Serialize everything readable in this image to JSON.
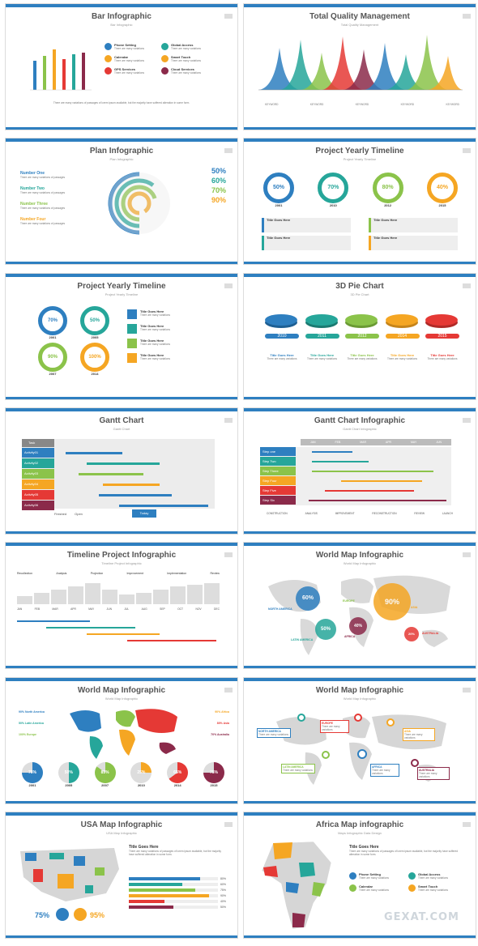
{
  "slides": [
    {
      "title": "Bar Infographic",
      "subtitle": "Bar Infographic"
    },
    {
      "title": "Total Quality Management",
      "subtitle": "Total Quality Management"
    },
    {
      "title": "Plan Infographic",
      "subtitle": "Plan Infographic"
    },
    {
      "title": "Project Yearly Timeline",
      "subtitle": "Project Yearly Timeline"
    },
    {
      "title": "Project Yearly Timeline",
      "subtitle": "Project Yearly Timeline"
    },
    {
      "title": "3D Pie Chart",
      "subtitle": "3D Pie Chart"
    },
    {
      "title": "Gantt Chart",
      "subtitle": "Gantt Chart"
    },
    {
      "title": "Gantt Chart Infographic",
      "subtitle": "Gantt Chart Infographic"
    },
    {
      "title": "Timeline Project Infographic",
      "subtitle": "Timeline Project Infographic"
    },
    {
      "title": "World Map Infographic",
      "subtitle": "World Map Infographic"
    },
    {
      "title": "World Map Infographic",
      "subtitle": "World Map Infographic"
    },
    {
      "title": "World Map Infographic",
      "subtitle": "World Map Infographic"
    },
    {
      "title": "USA Map Infographic",
      "subtitle": "USA Map Infographic"
    },
    {
      "title": "Africa Map infographic",
      "subtitle": "Maps Infographic Data Design"
    }
  ],
  "bar": {
    "items": [
      "Phone Setting",
      "Calendar",
      "GPS Services",
      "Global Access",
      "Smart Touch",
      "Cloud Services"
    ]
  },
  "tqm": {
    "keyword": "KEYWORD"
  },
  "plan": {
    "items": [
      "Number One",
      "Number Two",
      "Number Three",
      "Number Four"
    ],
    "pcts": [
      "50%",
      "60%",
      "70%",
      "90%"
    ]
  },
  "pyt1": {
    "pcts": [
      "50%",
      "70%",
      "80%",
      "40%"
    ],
    "years": [
      "2001",
      "2010",
      "2012",
      "2015"
    ],
    "box": "Title Goes Here"
  },
  "pyt2": {
    "pcts": [
      "70%",
      "50%",
      "90%",
      "100%"
    ],
    "years": [
      "2001",
      "2005",
      "2007",
      "2014"
    ],
    "box": "Title Goes Here"
  },
  "pie3d": {
    "years": [
      "2010",
      "2011",
      "2012",
      "2014",
      "2015"
    ],
    "pcts": [
      "70%",
      "40%",
      "60%",
      "30%",
      "80%"
    ],
    "box": "Title Goes Here"
  },
  "gantt1": {
    "task": "Task",
    "rows": [
      "Activity01",
      "Activity02",
      "Activity03",
      "Activity04",
      "Activity05",
      "Activity06"
    ],
    "legend": [
      "Finished",
      "Open"
    ],
    "today": "Today"
  },
  "gantt2": {
    "months": [
      "JAN",
      "FEB",
      "MAR",
      "APR",
      "MAY",
      "JUN"
    ],
    "rows": [
      "Step one",
      "Step Two",
      "Step Three",
      "Step Four",
      "Step Five",
      "Step Six"
    ],
    "legend": [
      "CONSTRUCTION",
      "ANALYSIS",
      "IMPROVEMENT",
      "RECONSTRUCTION",
      "REVIEW",
      "LAUNCH"
    ]
  },
  "tpi": {
    "labels": [
      "Recollection",
      "Analysis",
      "Projection",
      "Improvement",
      "Implementation",
      "Review"
    ],
    "months": [
      "JAN",
      "FEB",
      "MAR",
      "APR",
      "MAY",
      "JUN",
      "JUL",
      "AUG",
      "SEP",
      "OCT",
      "NOV",
      "DEC"
    ]
  },
  "wm1": {
    "bubbles": [
      "60%",
      "90%",
      "50%",
      "40%",
      "20%"
    ],
    "regions": [
      "NORTH AMERICA",
      "EUROPE",
      "ASIA",
      "LATIN AMERICA",
      "AFRICA",
      "AUSTRALIA"
    ]
  },
  "wm2": {
    "pcts": [
      "75%",
      "50%",
      "85%",
      "25%",
      "65%",
      "75%"
    ],
    "years": [
      "2001",
      "2005",
      "2007",
      "2010",
      "2014",
      "2015"
    ],
    "left": [
      "90% North America",
      "50% Latin America",
      "100% Europe"
    ],
    "right": [
      "90% Africa",
      "80% Asia",
      "70% Australia"
    ]
  },
  "wm3": {
    "regions": [
      "NORTH AMERICA",
      "EUROPE",
      "ASIA",
      "LATIN AMERICA",
      "AFRICA",
      "AUSTRALIA"
    ]
  },
  "usa": {
    "title": "Title Goes Here",
    "pcts": [
      "75%",
      "95%"
    ],
    "bars": [
      "80%",
      "60%",
      "75%",
      "90%",
      "40%",
      "50%"
    ]
  },
  "africa": {
    "title": "Title Goes Here",
    "items": [
      "Phone Setting",
      "Global Access",
      "Calendar",
      "Smart Touch"
    ]
  },
  "watermark": "GEXAT.COM"
}
